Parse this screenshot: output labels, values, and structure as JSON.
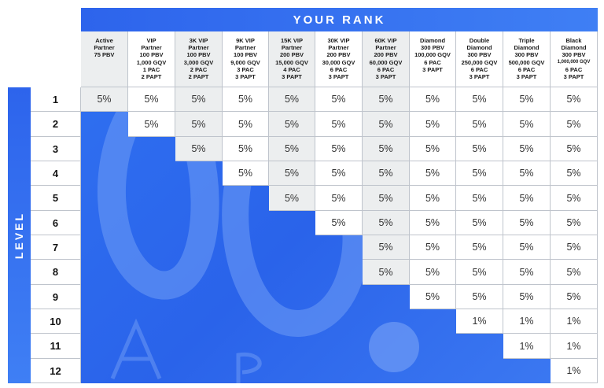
{
  "title": "YOUR RANK",
  "level_label": "LEVEL",
  "ranks": [
    {
      "lines": [
        "Active",
        "Partner",
        "75 PBV"
      ],
      "small": []
    },
    {
      "lines": [
        "VIP",
        "Partner",
        "100 PBV",
        "1,000 GQV",
        "1 PAC",
        "2 PAPT"
      ],
      "small": []
    },
    {
      "lines": [
        "3K VIP",
        "Partner",
        "100 PBV",
        "3,000 GQV",
        "2 PAC",
        "2 PAPT"
      ],
      "small": []
    },
    {
      "lines": [
        "9K VIP",
        "Partner",
        "100 PBV",
        "9,000 GQV",
        "3 PAC",
        "3 PAPT"
      ],
      "small": []
    },
    {
      "lines": [
        "15K VIP",
        "Partner",
        "200 PBV",
        "15,000 GQV",
        "4 PAC",
        "3 PAPT"
      ],
      "small": []
    },
    {
      "lines": [
        "30K VIP",
        "Partner",
        "200 PBV",
        "30,000 GQV",
        "6 PAC",
        "3 PAPT"
      ],
      "small": []
    },
    {
      "lines": [
        "60K VIP",
        "Partner",
        "200 PBV",
        "60,000 GQV",
        "6 PAC",
        "3 PAPT"
      ],
      "small": []
    },
    {
      "lines": [
        "Diamond",
        "300 PBV",
        "100,000 GQV",
        "6 PAC",
        "3 PAPT"
      ],
      "small": []
    },
    {
      "lines": [
        "Double",
        "Diamond",
        "300 PBV",
        "250,000 GQV",
        "6 PAC",
        "3 PAPT"
      ],
      "small": []
    },
    {
      "lines": [
        "Triple",
        "Diamond",
        "300 PBV",
        "500,000 GQV",
        "6 PAC",
        "3 PAPT"
      ],
      "small": []
    },
    {
      "lines": [
        "Black",
        "Diamond",
        "300 PBV",
        "1,000,000 GQV",
        "6 PAC",
        "3 PAPT"
      ],
      "small": [
        3
      ]
    }
  ],
  "levels": [
    {
      "level": "1",
      "values": [
        "5%",
        "5%",
        "5%",
        "5%",
        "5%",
        "5%",
        "5%",
        "5%",
        "5%",
        "5%",
        "5%"
      ]
    },
    {
      "level": "2",
      "values": [
        null,
        "5%",
        "5%",
        "5%",
        "5%",
        "5%",
        "5%",
        "5%",
        "5%",
        "5%",
        "5%"
      ]
    },
    {
      "level": "3",
      "values": [
        null,
        null,
        "5%",
        "5%",
        "5%",
        "5%",
        "5%",
        "5%",
        "5%",
        "5%",
        "5%"
      ]
    },
    {
      "level": "4",
      "values": [
        null,
        null,
        null,
        "5%",
        "5%",
        "5%",
        "5%",
        "5%",
        "5%",
        "5%",
        "5%"
      ]
    },
    {
      "level": "5",
      "values": [
        null,
        null,
        null,
        null,
        "5%",
        "5%",
        "5%",
        "5%",
        "5%",
        "5%",
        "5%"
      ]
    },
    {
      "level": "6",
      "values": [
        null,
        null,
        null,
        null,
        null,
        "5%",
        "5%",
        "5%",
        "5%",
        "5%",
        "5%"
      ]
    },
    {
      "level": "7",
      "values": [
        null,
        null,
        null,
        null,
        null,
        null,
        "5%",
        "5%",
        "5%",
        "5%",
        "5%"
      ]
    },
    {
      "level": "8",
      "values": [
        null,
        null,
        null,
        null,
        null,
        null,
        "5%",
        "5%",
        "5%",
        "5%",
        "5%"
      ]
    },
    {
      "level": "9",
      "values": [
        null,
        null,
        null,
        null,
        null,
        null,
        null,
        "5%",
        "5%",
        "5%",
        "5%"
      ]
    },
    {
      "level": "10",
      "values": [
        null,
        null,
        null,
        null,
        null,
        null,
        null,
        null,
        "1%",
        "1%",
        "1%"
      ]
    },
    {
      "level": "11",
      "values": [
        null,
        null,
        null,
        null,
        null,
        null,
        null,
        null,
        null,
        "1%",
        "1%"
      ]
    },
    {
      "level": "12",
      "values": [
        null,
        null,
        null,
        null,
        null,
        null,
        null,
        null,
        null,
        null,
        "1%"
      ]
    }
  ],
  "colors": {
    "accent": "#2f6ff0",
    "gray_cell": "#eceeef",
    "white_cell": "#ffffff"
  },
  "gray_columns": [
    0,
    2,
    4,
    6
  ]
}
